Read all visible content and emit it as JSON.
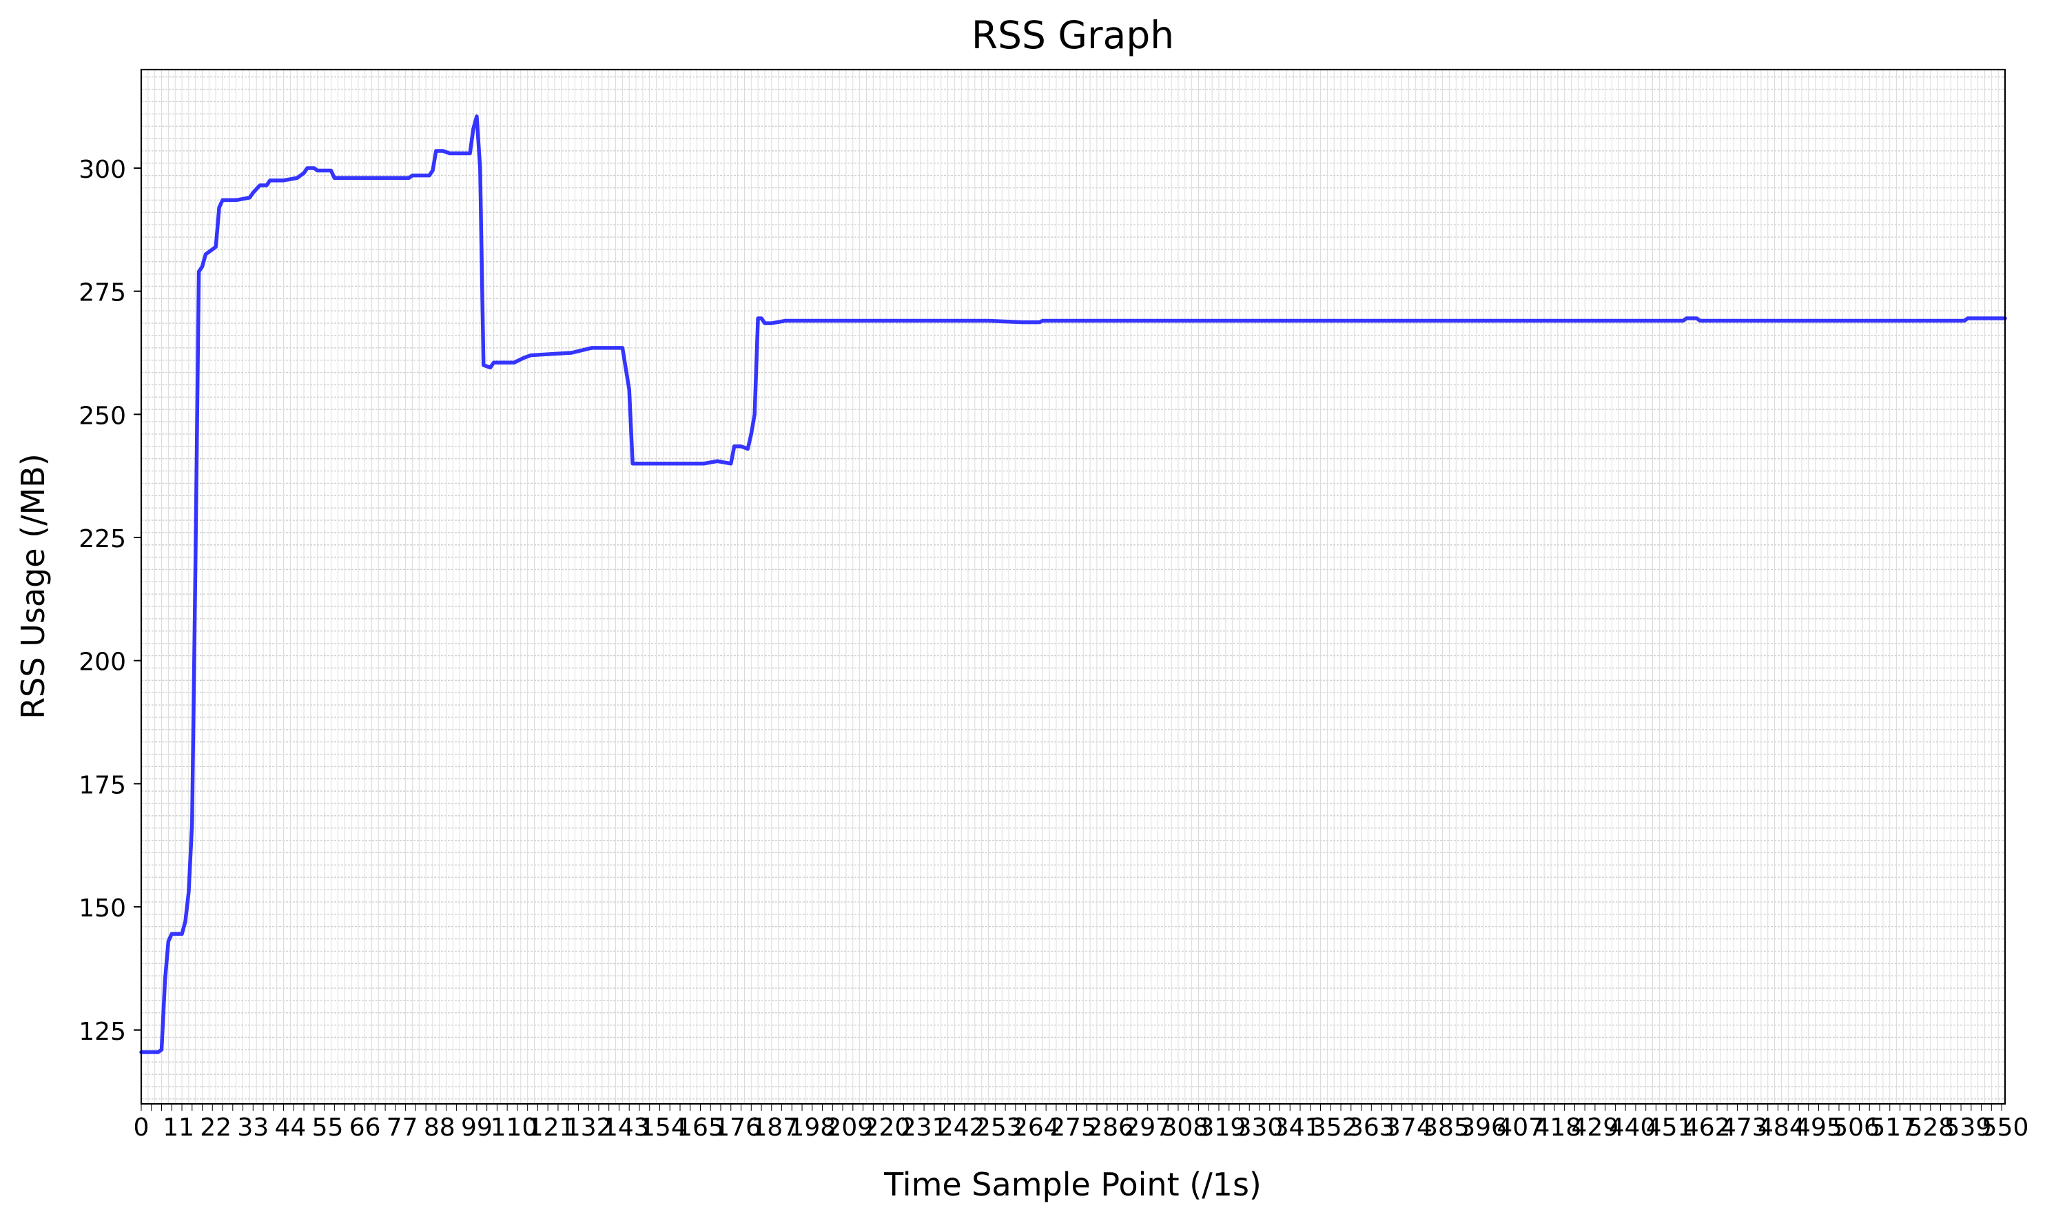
{
  "chart_data": {
    "type": "line",
    "title": "RSS Graph",
    "xlabel": "Time Sample Point (/1s)",
    "ylabel": "RSS Usage (/MB)",
    "xlim": [
      0,
      550
    ],
    "ylim": [
      110,
      320
    ],
    "yticks": [
      125,
      150,
      175,
      200,
      225,
      250,
      275,
      300
    ],
    "grid": true,
    "line_color": "#1f1fff",
    "series": [
      {
        "points": [
          [
            0,
            120.5
          ],
          [
            5,
            120.5
          ],
          [
            6,
            121
          ],
          [
            7,
            135
          ],
          [
            8,
            143
          ],
          [
            9,
            144.5
          ],
          [
            12,
            144.5
          ],
          [
            13,
            147
          ],
          [
            14,
            153
          ],
          [
            15,
            167
          ],
          [
            16,
            220
          ],
          [
            17,
            279
          ],
          [
            18,
            280
          ],
          [
            19,
            282.5
          ],
          [
            21,
            283.5
          ],
          [
            22,
            284
          ],
          [
            23,
            292
          ],
          [
            24,
            293.5
          ],
          [
            28,
            293.5
          ],
          [
            32,
            294
          ],
          [
            33,
            295
          ],
          [
            35,
            296.5
          ],
          [
            37,
            296.5
          ],
          [
            38,
            297.5
          ],
          [
            42,
            297.5
          ],
          [
            46,
            298
          ],
          [
            48,
            299
          ],
          [
            49,
            300
          ],
          [
            51,
            300
          ],
          [
            52,
            299.5
          ],
          [
            56,
            299.5
          ],
          [
            57,
            298
          ],
          [
            79,
            298
          ],
          [
            80,
            298.5
          ],
          [
            85,
            298.5
          ],
          [
            86,
            299.5
          ],
          [
            87,
            303.5
          ],
          [
            89,
            303.5
          ],
          [
            91,
            303
          ],
          [
            97,
            303
          ],
          [
            98,
            308
          ],
          [
            99,
            310.5
          ],
          [
            100,
            300
          ],
          [
            101,
            260
          ],
          [
            103,
            259.5
          ],
          [
            104,
            260.5
          ],
          [
            110,
            260.5
          ],
          [
            113,
            261.5
          ],
          [
            115,
            262
          ],
          [
            127,
            262.5
          ],
          [
            133,
            263.5
          ],
          [
            142,
            263.5
          ],
          [
            144,
            255
          ],
          [
            145,
            240
          ],
          [
            149,
            240
          ],
          [
            166,
            240
          ],
          [
            170,
            240.5
          ],
          [
            174,
            240
          ],
          [
            175,
            243.5
          ],
          [
            177,
            243.5
          ],
          [
            179,
            243
          ],
          [
            180,
            246
          ],
          [
            181,
            250
          ],
          [
            182,
            269.5
          ],
          [
            183,
            269.5
          ],
          [
            184,
            268.5
          ],
          [
            186,
            268.5
          ],
          [
            190,
            269
          ],
          [
            200,
            269
          ],
          [
            250,
            269
          ],
          [
            260,
            268.7
          ],
          [
            265,
            268.7
          ],
          [
            266,
            269
          ],
          [
            400,
            269
          ],
          [
            455,
            269
          ],
          [
            456,
            269.5
          ],
          [
            459,
            269.5
          ],
          [
            460,
            269
          ],
          [
            538,
            269
          ],
          [
            539,
            269.5
          ],
          [
            550,
            269.5
          ]
        ]
      }
    ]
  }
}
